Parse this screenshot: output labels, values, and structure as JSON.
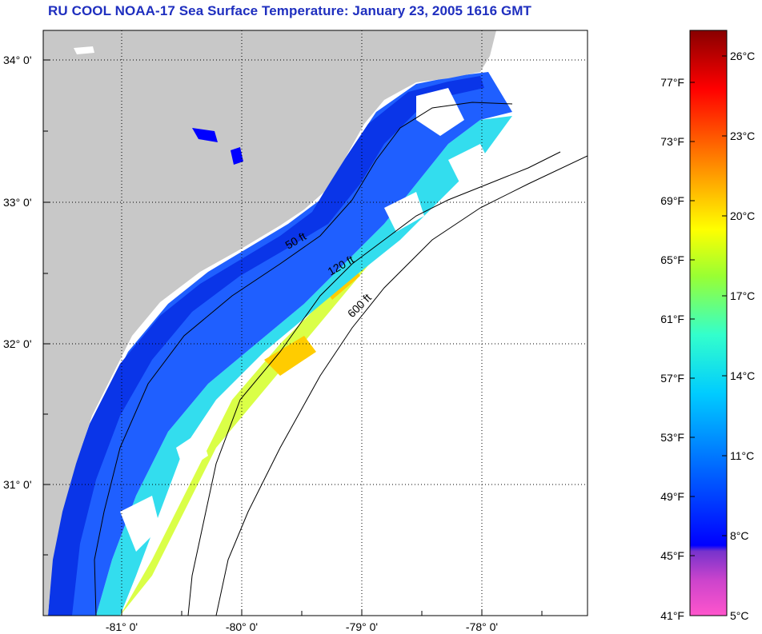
{
  "title": "RU COOL  NOAA-17  Sea Surface Temperature:  January 23, 2005 1616 GMT",
  "map": {
    "lat_labels": [
      "34° 0'",
      "33° 0'",
      "32° 0'",
      "31° 0'"
    ],
    "lon_labels": [
      "-81° 0'",
      "-80° 0'",
      "-79° 0'",
      "-78° 0'"
    ],
    "contour_labels": [
      "50 ft",
      "120 ft",
      "600 ft"
    ],
    "grid": true,
    "colors": {
      "land": "#c8c8c8",
      "cloud": "#ffffff",
      "contour": "#000000"
    }
  },
  "colorbar": {
    "fahrenheit_labels": [
      "77°F",
      "73°F",
      "69°F",
      "65°F",
      "61°F",
      "57°F",
      "53°F",
      "49°F",
      "45°F",
      "41°F"
    ],
    "celsius_labels": [
      "26°C",
      "23°C",
      "20°C",
      "17°C",
      "14°C",
      "11°C",
      "8°C",
      "5°C"
    ],
    "range_celsius": [
      5,
      27
    ],
    "gradient_colors": [
      "#ff55cc",
      "#9944cc",
      "#0000ff",
      "#0066ff",
      "#00ccff",
      "#33ffcc",
      "#99ff33",
      "#ffff00",
      "#ff9900",
      "#ff2200",
      "#cc0000",
      "#880000"
    ]
  }
}
